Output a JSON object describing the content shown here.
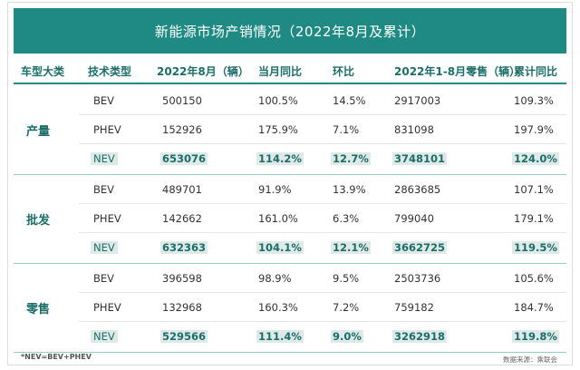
{
  "title": "新能源市场产销情况（2022年8月及累计）",
  "headers": [
    "车型大类",
    "技术类型",
    "2022年8月（辆）",
    "当月同比",
    "环比",
    "2022年1-8月零售（辆）",
    "累计同比"
  ],
  "groups": [
    {
      "label": "产量",
      "rows": [
        {
          "tech": "BEV",
          "aug": "500150",
          "yoy": "100.5%",
          "mom": "14.5%",
          "ytd": "2917003",
          "ytd_yoy": "109.3%"
        },
        {
          "tech": "PHEV",
          "aug": "152926",
          "yoy": "175.9%",
          "mom": "7.1%",
          "ytd": "831098",
          "ytd_yoy": "197.9%"
        },
        {
          "tech": "NEV",
          "aug": "653076",
          "yoy": "114.2%",
          "mom": "12.7%",
          "ytd": "3748101",
          "ytd_yoy": "124.0%"
        }
      ]
    },
    {
      "label": "批发",
      "rows": [
        {
          "tech": "BEV",
          "aug": "489701",
          "yoy": "91.9%",
          "mom": "13.9%",
          "ytd": "2863685",
          "ytd_yoy": "107.1%"
        },
        {
          "tech": "PHEV",
          "aug": "142662",
          "yoy": "161.0%",
          "mom": "6.3%",
          "ytd": "799040",
          "ytd_yoy": "179.1%"
        },
        {
          "tech": "NEV",
          "aug": "632363",
          "yoy": "104.1%",
          "mom": "12.1%",
          "ytd": "3662725",
          "ytd_yoy": "119.5%"
        }
      ]
    },
    {
      "label": "零售",
      "rows": [
        {
          "tech": "BEV",
          "aug": "396598",
          "yoy": "98.9%",
          "mom": "9.5%",
          "ytd": "2503736",
          "ytd_yoy": "105.6%"
        },
        {
          "tech": "PHEV",
          "aug": "132968",
          "yoy": "160.3%",
          "mom": "7.2%",
          "ytd": "759182",
          "ytd_yoy": "184.7%"
        },
        {
          "tech": "NEV",
          "aug": "529566",
          "yoy": "111.4%",
          "mom": "9.0%",
          "ytd": "3262918",
          "ytd_yoy": "119.8%"
        }
      ]
    }
  ],
  "footnote": "*NEV=BEV+PHEV",
  "source": "数据来源：乘联会"
}
